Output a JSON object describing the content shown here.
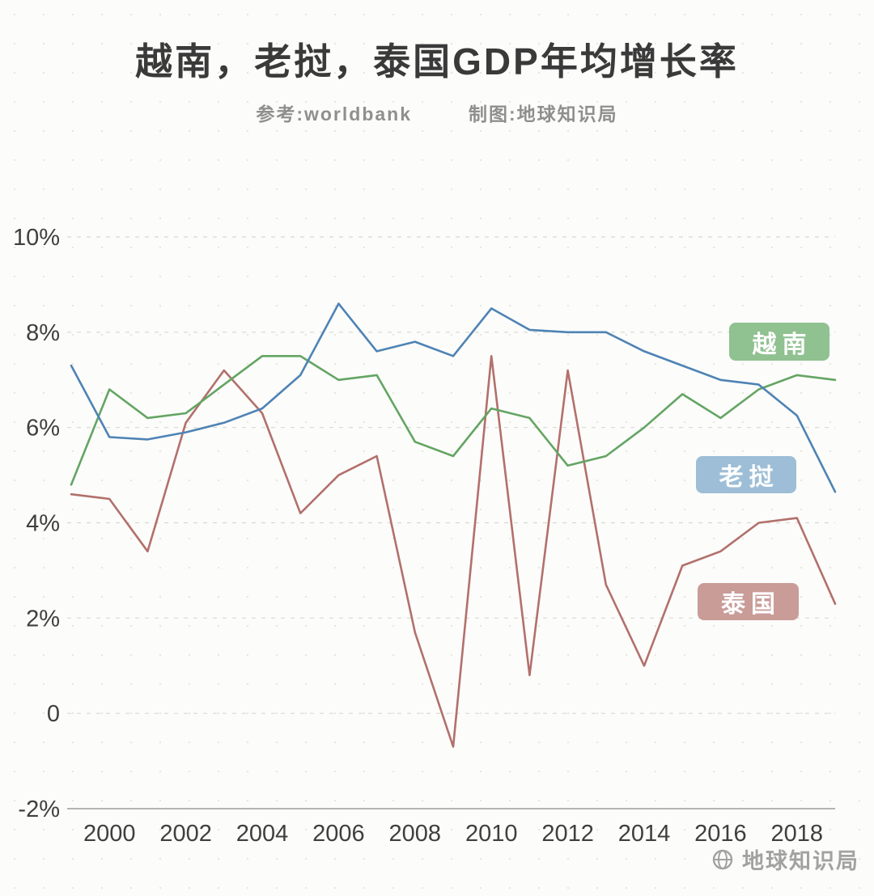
{
  "title": "越南，老挝，泰国GDP年均增长率",
  "subtitle": {
    "reference": "参考:worldbank",
    "credit": "制图:地球知识局"
  },
  "watermark": "地球知识局",
  "chart_data": {
    "type": "line",
    "title": "越南，老挝，泰国GDP年均增长率",
    "x": [
      1999,
      2000,
      2001,
      2002,
      2003,
      2004,
      2005,
      2006,
      2007,
      2008,
      2009,
      2010,
      2011,
      2012,
      2013,
      2014,
      2015,
      2016,
      2017,
      2018,
      2019
    ],
    "ylim": [
      -2,
      10
    ],
    "yticks": [
      {
        "v": 10,
        "label": "10%"
      },
      {
        "v": 8,
        "label": "8%"
      },
      {
        "v": 6,
        "label": "6%"
      },
      {
        "v": 4,
        "label": "4%"
      },
      {
        "v": 2,
        "label": "2%"
      },
      {
        "v": 0,
        "label": "0"
      },
      {
        "v": -2,
        "label": "-2%"
      }
    ],
    "xticks": [
      2000,
      2002,
      2004,
      2006,
      2008,
      2010,
      2012,
      2014,
      2016,
      2018
    ],
    "grid": "horizontal-dashed",
    "legend_position": "right-inside",
    "xlabel": "",
    "ylabel": "",
    "series": [
      {
        "name": "泰国",
        "color": "#b2706c",
        "label_bg": "#c99c98",
        "values": [
          4.6,
          4.5,
          3.4,
          6.1,
          7.2,
          6.3,
          4.2,
          5.0,
          5.4,
          1.7,
          -0.7,
          7.5,
          0.8,
          7.2,
          2.7,
          1.0,
          3.1,
          3.4,
          4.0,
          4.1,
          2.3
        ]
      },
      {
        "name": "越南",
        "color": "#63a563",
        "label_bg": "#90c190",
        "values": [
          4.8,
          6.8,
          6.2,
          6.3,
          6.9,
          7.5,
          7.5,
          7.0,
          7.1,
          5.7,
          5.4,
          6.4,
          6.2,
          5.2,
          5.4,
          6.0,
          6.7,
          6.2,
          6.8,
          7.1,
          7.0
        ]
      },
      {
        "name": "老挝",
        "color": "#4e83b5",
        "label_bg": "#9dbed6",
        "values": [
          7.3,
          5.8,
          5.75,
          5.9,
          6.1,
          6.4,
          7.1,
          8.6,
          7.6,
          7.8,
          7.5,
          8.5,
          8.05,
          8.0,
          8.0,
          7.6,
          7.3,
          7.0,
          6.9,
          6.25,
          4.65
        ]
      }
    ]
  }
}
